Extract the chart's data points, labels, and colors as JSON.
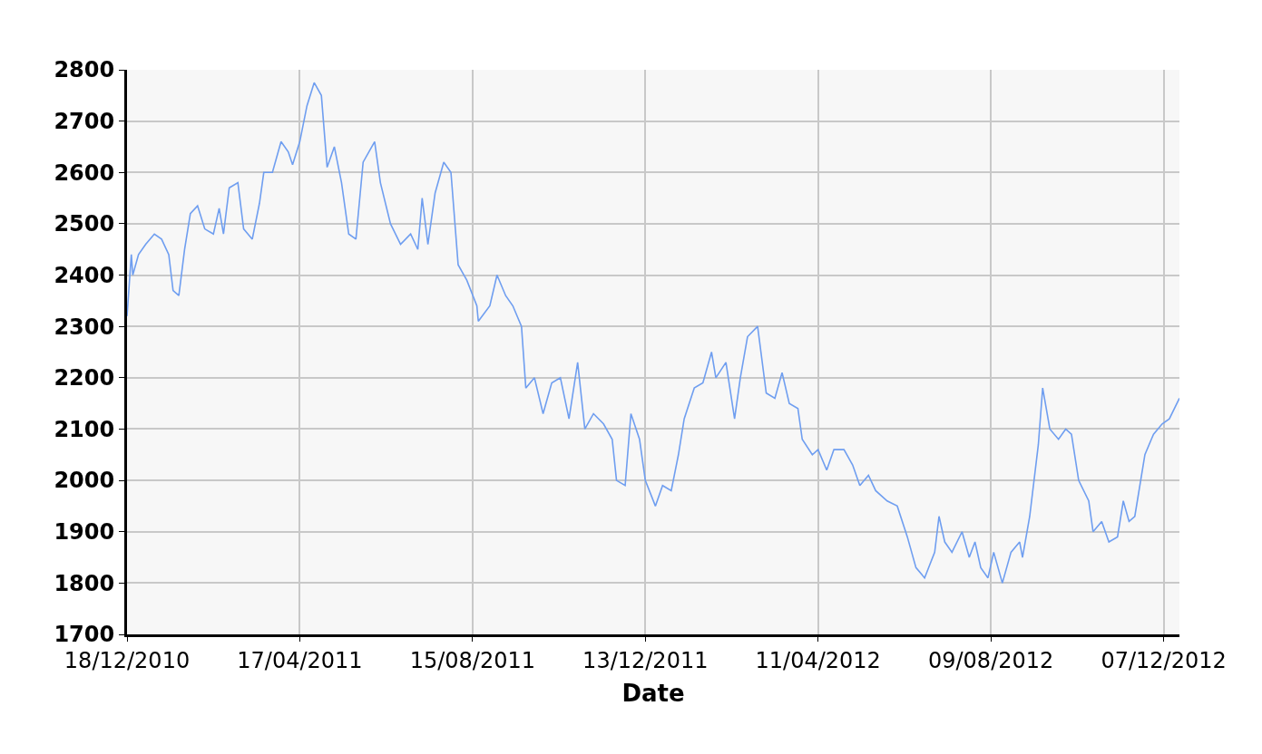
{
  "chart_data": {
    "type": "line",
    "xlabel": "Date",
    "x": [
      "2010-12-18",
      "2010-12-21",
      "2010-12-22",
      "2010-12-26",
      "2010-12-31",
      "2011-01-06",
      "2011-01-11",
      "2011-01-16",
      "2011-01-19",
      "2011-01-23",
      "2011-01-27",
      "2011-01-31",
      "2011-02-05",
      "2011-02-10",
      "2011-02-16",
      "2011-02-20",
      "2011-02-23",
      "2011-02-27",
      "2011-03-05",
      "2011-03-09",
      "2011-03-15",
      "2011-03-20",
      "2011-03-23",
      "2011-03-29",
      "2011-04-04",
      "2011-04-09",
      "2011-04-12",
      "2011-04-17",
      "2011-04-22",
      "2011-04-27",
      "2011-05-02",
      "2011-05-06",
      "2011-05-11",
      "2011-05-16",
      "2011-05-21",
      "2011-05-26",
      "2011-05-31",
      "2011-06-04",
      "2011-06-08",
      "2011-06-12",
      "2011-06-19",
      "2011-06-26",
      "2011-07-03",
      "2011-07-08",
      "2011-07-11",
      "2011-07-15",
      "2011-07-20",
      "2011-07-26",
      "2011-07-31",
      "2011-08-05",
      "2011-08-11",
      "2011-08-18",
      "2011-08-19",
      "2011-08-27",
      "2011-09-01",
      "2011-09-07",
      "2011-09-12",
      "2011-09-18",
      "2011-09-21",
      "2011-09-27",
      "2011-10-03",
      "2011-10-09",
      "2011-10-15",
      "2011-10-21",
      "2011-10-27",
      "2011-11-01",
      "2011-11-07",
      "2011-11-14",
      "2011-11-20",
      "2011-11-23",
      "2011-11-29",
      "2011-12-03",
      "2011-12-09",
      "2011-12-13",
      "2011-12-20",
      "2011-12-25",
      "2011-12-31",
      "2012-01-05",
      "2012-01-09",
      "2012-01-16",
      "2012-01-22",
      "2012-01-28",
      "2012-01-31",
      "2012-02-07",
      "2012-02-13",
      "2012-02-17",
      "2012-02-22",
      "2012-02-29",
      "2012-03-06",
      "2012-03-12",
      "2012-03-17",
      "2012-03-22",
      "2012-03-28",
      "2012-03-31",
      "2012-04-07",
      "2012-04-11",
      "2012-04-17",
      "2012-04-22",
      "2012-04-29",
      "2012-05-05",
      "2012-05-10",
      "2012-05-16",
      "2012-05-21",
      "2012-05-29",
      "2012-06-05",
      "2012-06-12",
      "2012-06-18",
      "2012-06-24",
      "2012-07-01",
      "2012-07-04",
      "2012-07-08",
      "2012-07-13",
      "2012-07-20",
      "2012-07-25",
      "2012-07-29",
      "2012-08-02",
      "2012-08-07",
      "2012-08-11",
      "2012-08-17",
      "2012-08-23",
      "2012-08-29",
      "2012-08-31",
      "2012-09-05",
      "2012-09-11",
      "2012-09-14",
      "2012-09-19",
      "2012-09-25",
      "2012-09-30",
      "2012-10-04",
      "2012-10-09",
      "2012-10-16",
      "2012-10-19",
      "2012-10-25",
      "2012-10-30",
      "2012-11-05",
      "2012-11-09",
      "2012-11-13",
      "2012-11-17",
      "2012-11-24",
      "2012-11-30",
      "2012-12-06",
      "2012-12-11",
      "2012-12-18"
    ],
    "series": [
      {
        "color": "#6f9ef0",
        "values": [
          2320,
          2440,
          2400,
          2440,
          2460,
          2480,
          2470,
          2440,
          2370,
          2360,
          2450,
          2520,
          2535,
          2490,
          2480,
          2530,
          2480,
          2570,
          2580,
          2490,
          2470,
          2540,
          2600,
          2600,
          2660,
          2640,
          2615,
          2660,
          2730,
          2775,
          2750,
          2610,
          2650,
          2580,
          2480,
          2470,
          2620,
          2640,
          2660,
          2580,
          2500,
          2460,
          2480,
          2450,
          2550,
          2460,
          2560,
          2620,
          2600,
          2420,
          2390,
          2340,
          2310,
          2340,
          2400,
          2360,
          2340,
          2300,
          2180,
          2200,
          2130,
          2190,
          2200,
          2120,
          2230,
          2100,
          2130,
          2110,
          2080,
          2000,
          1990,
          2130,
          2080,
          2000,
          1950,
          1990,
          1980,
          2050,
          2120,
          2180,
          2190,
          2250,
          2200,
          2230,
          2120,
          2200,
          2280,
          2300,
          2170,
          2160,
          2210,
          2150,
          2140,
          2080,
          2050,
          2060,
          2020,
          2060,
          2060,
          2030,
          1990,
          2010,
          1980,
          1960,
          1950,
          1890,
          1830,
          1810,
          1860,
          1930,
          1880,
          1860,
          1900,
          1850,
          1880,
          1830,
          1810,
          1860,
          1800,
          1860,
          1880,
          1850,
          1930,
          2070,
          2180,
          2100,
          2080,
          2100,
          2090,
          2000,
          1960,
          1900,
          1920,
          1880,
          1890,
          1960,
          1920,
          1930,
          2050,
          2090,
          2110,
          2120,
          2160
        ]
      }
    ],
    "xlim": [
      "2010-12-18",
      "2012-12-18"
    ],
    "xticks": [
      {
        "value": "2010-12-18",
        "label": "18/12/2010"
      },
      {
        "value": "2011-04-17",
        "label": "17/04/2011"
      },
      {
        "value": "2011-08-15",
        "label": "15/08/2011"
      },
      {
        "value": "2011-12-13",
        "label": "13/12/2011"
      },
      {
        "value": "2012-04-11",
        "label": "11/04/2012"
      },
      {
        "value": "2012-08-09",
        "label": "09/08/2012"
      },
      {
        "value": "2012-12-07",
        "label": "07/12/2012"
      }
    ],
    "ylim": [
      1700,
      2800
    ],
    "yticks": [
      1700,
      1800,
      1900,
      2000,
      2100,
      2200,
      2300,
      2400,
      2500,
      2600,
      2700,
      2800
    ],
    "grid": true,
    "legend": false,
    "marker": "none",
    "line_style": "solid"
  }
}
